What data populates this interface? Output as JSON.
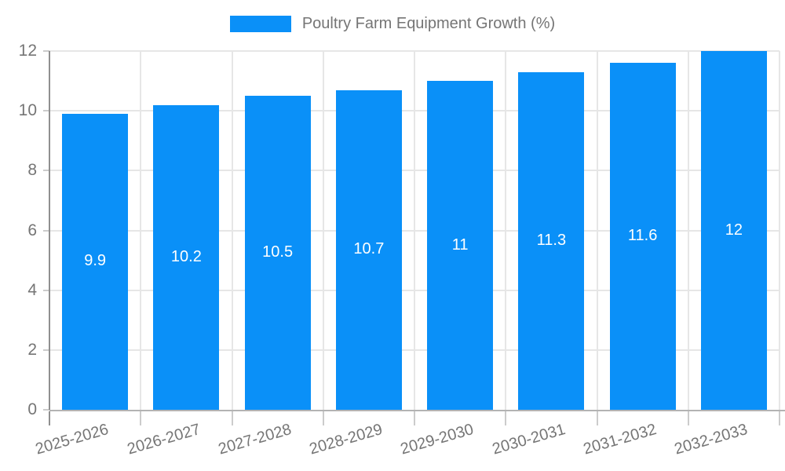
{
  "legend": {
    "label": "Poultry Farm Equipment Growth (%)"
  },
  "chart_data": {
    "type": "bar",
    "title": "",
    "xlabel": "",
    "ylabel": "",
    "series_name": "Poultry Farm Equipment Growth (%)",
    "categories": [
      "2025-2026",
      "2026-2027",
      "2027-2028",
      "2028-2029",
      "2029-2030",
      "2030-2031",
      "2031-2032",
      "2032-2033"
    ],
    "values": [
      9.9,
      10.2,
      10.5,
      10.7,
      11,
      11.3,
      11.6,
      12
    ],
    "value_labels": [
      "9.9",
      "10.2",
      "10.5",
      "10.7",
      "11",
      "11.3",
      "11.6",
      "12"
    ],
    "ylim": [
      0,
      12
    ],
    "yticks": [
      0,
      2,
      4,
      6,
      8,
      10,
      12
    ],
    "grid": true,
    "legend_position": "top-center",
    "colors": {
      "bar": "#0a90f8",
      "bar_label": "#ffffff",
      "grid": "#e6e6e6",
      "y_axis_line": "#8f8f8f",
      "x_axis_line": "#b3b3b3",
      "tick": "#cccccc",
      "axis_text": "#757575"
    }
  }
}
